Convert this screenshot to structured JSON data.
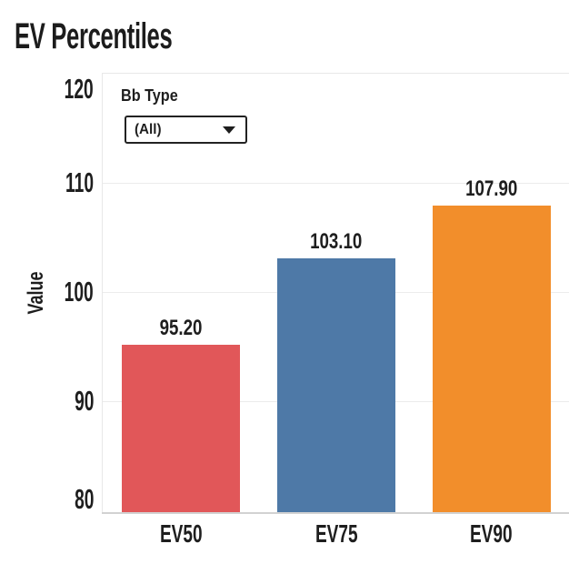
{
  "title": "EV Percentiles",
  "filter": {
    "label": "Bb Type",
    "value": "(All)",
    "icon": "caret-down-icon"
  },
  "chart_data": {
    "type": "bar",
    "title": "EV Percentiles",
    "categories": [
      "EV50",
      "EV75",
      "EV90"
    ],
    "values": [
      95.2,
      103.1,
      107.9
    ],
    "value_labels": [
      "95.20",
      "103.10",
      "107.90"
    ],
    "bar_colors": [
      "#e15759",
      "#4e79a7",
      "#f28e2b"
    ],
    "xlabel": "",
    "ylabel": "Value",
    "ylim": [
      80,
      120
    ],
    "yticks": [
      80,
      90,
      100,
      110,
      120
    ],
    "grid": true,
    "legend": false
  },
  "colors": {
    "text": "#1e1e1e",
    "gridline": "#ececec",
    "axis_line": "#d2d2d2",
    "pane_border": "#e8e8e8",
    "background": "#ffffff"
  }
}
